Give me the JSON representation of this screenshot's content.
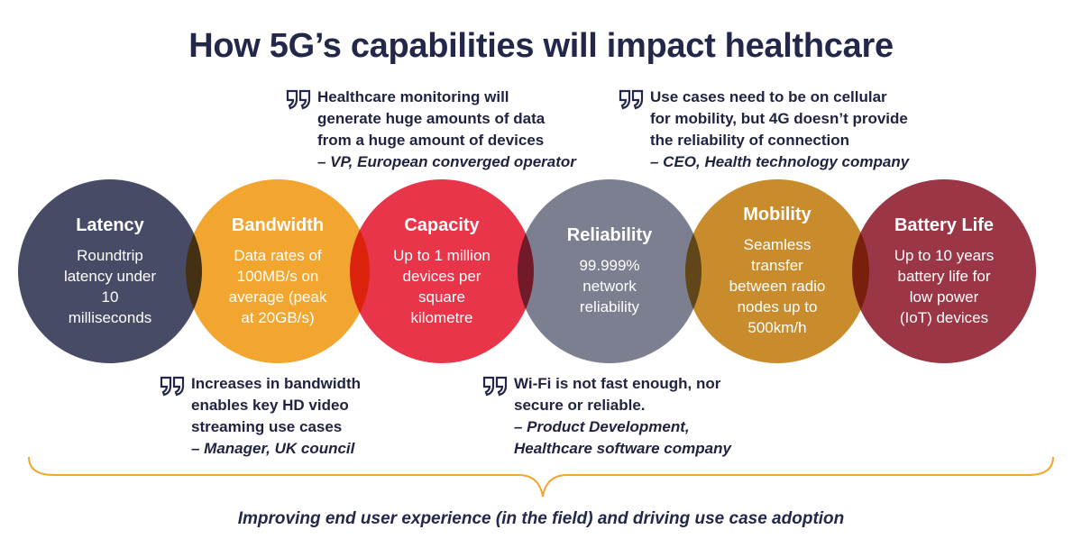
{
  "title": "How 5G’s capabilities will impact healthcare",
  "capabilities": [
    {
      "title": "Latency",
      "lines": [
        "Roundtrip",
        "latency under",
        "10",
        "milliseconds"
      ],
      "color": "#474b66"
    },
    {
      "title": "Bandwidth",
      "lines": [
        "Data rates of",
        "100MB/s on",
        "average (peak",
        "at 20GB/s)"
      ],
      "color": "#f2a630"
    },
    {
      "title": "Capacity",
      "lines": [
        "Up to 1 million",
        "devices per",
        "square",
        "kilometre"
      ],
      "color": "#e8354a"
    },
    {
      "title": "Reliability",
      "lines": [
        "99.999%",
        "network",
        "reliability"
      ],
      "color": "#7c7f90"
    },
    {
      "title": "Mobility",
      "lines": [
        "Seamless",
        "transfer",
        "between radio",
        "nodes up to",
        "500km/h"
      ],
      "color": "#c88c2c"
    },
    {
      "title": "Battery Life",
      "lines": [
        "Up to 10 years",
        "battery life for",
        "low power",
        "(IoT) devices"
      ],
      "color": "#9b3646"
    }
  ],
  "quotes": [
    {
      "lines": [
        "Healthcare monitoring will",
        "generate huge amounts of data",
        "from a huge amount of devices"
      ],
      "attribution": "– VP, European converged operator"
    },
    {
      "lines": [
        "Use cases need to be on cellular",
        "for mobility, but 4G doesn’t provide",
        "the reliability of connection"
      ],
      "attribution": "– CEO, Health technology company"
    },
    {
      "lines": [
        "Increases in bandwidth",
        "enables key HD video",
        "streaming use cases"
      ],
      "attribution": "– Manager, UK council"
    },
    {
      "lines": [
        "Wi-Fi is not fast enough, nor",
        "secure or reliable."
      ],
      "attribution": [
        "– Product Development,",
        "Healthcare software company"
      ]
    }
  ],
  "footer": "Improving end user experience (in the field) and driving use case adoption",
  "colors": {
    "quote_icon": "#23284a",
    "brace": "#f2a630"
  }
}
